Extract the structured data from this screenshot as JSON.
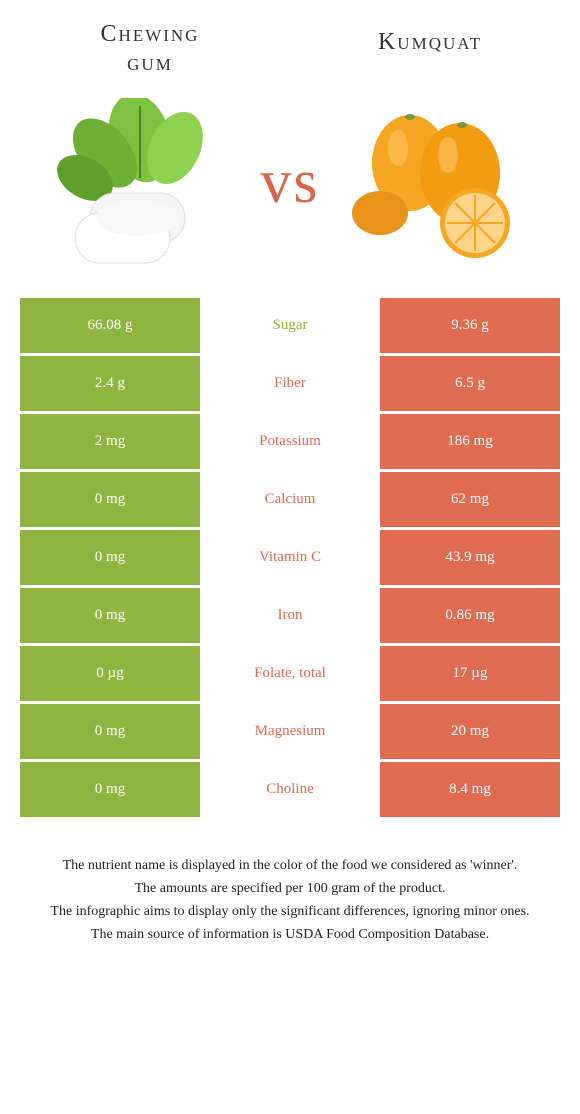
{
  "header": {
    "left_title_line1": "Chewing",
    "left_title_line2": "gum",
    "right_title": "Kumquat"
  },
  "vs_label": "vs",
  "colors": {
    "left": "#8eb53f",
    "right": "#df6b51",
    "vs": "#d7674b"
  },
  "rows": [
    {
      "left": "66.08 g",
      "label": "Sugar",
      "right": "9.36 g",
      "winner": "left"
    },
    {
      "left": "2.4 g",
      "label": "Fiber",
      "right": "6.5 g",
      "winner": "right"
    },
    {
      "left": "2 mg",
      "label": "Potassium",
      "right": "186 mg",
      "winner": "right"
    },
    {
      "left": "0 mg",
      "label": "Calcium",
      "right": "62 mg",
      "winner": "right"
    },
    {
      "left": "0 mg",
      "label": "Vitamin C",
      "right": "43.9 mg",
      "winner": "right"
    },
    {
      "left": "0 mg",
      "label": "Iron",
      "right": "0.86 mg",
      "winner": "right"
    },
    {
      "left": "0 µg",
      "label": "Folate, total",
      "right": "17 µg",
      "winner": "right"
    },
    {
      "left": "0 mg",
      "label": "Magnesium",
      "right": "20 mg",
      "winner": "right"
    },
    {
      "left": "0 mg",
      "label": "Choline",
      "right": "8.4 mg",
      "winner": "right"
    }
  ],
  "footer": {
    "line1": "The nutrient name is displayed in the color of the food we considered as 'winner'.",
    "line2": "The amounts are specified per 100 gram of the product.",
    "line3": "The infographic aims to display only the significant differences, ignoring minor ones.",
    "line4": "The main source of information is USDA Food Composition Database."
  }
}
